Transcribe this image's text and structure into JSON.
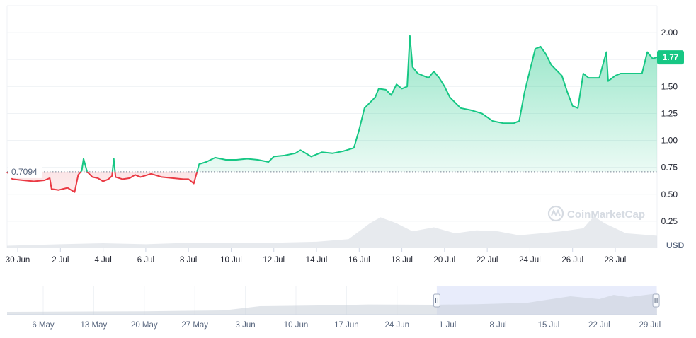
{
  "chart_data": {
    "type": "area",
    "watermark": "CoinMarketCap",
    "unit_label": "USD",
    "current_price_label": "1.77",
    "reference_label": "0.7094",
    "reference_value": 0.7094,
    "colors": {
      "up": "#16c784",
      "down": "#ea3943",
      "volume": "#dfe3e8",
      "navigator_selection": "#e8ecfb",
      "grid": "#eff2f5"
    },
    "ylim": [
      0,
      2.25
    ],
    "y_ticks": [
      {
        "value": 0.25,
        "label": "0.25"
      },
      {
        "value": 0.5,
        "label": "0.50"
      },
      {
        "value": 0.75,
        "label": "0.75"
      },
      {
        "value": 1.0,
        "label": "1.00"
      },
      {
        "value": 1.25,
        "label": "1.25"
      },
      {
        "value": 1.5,
        "label": "1.50"
      },
      {
        "value": 1.75,
        "label": "1.75"
      },
      {
        "value": 2.0,
        "label": "2.00"
      }
    ],
    "x_domain": [
      "2024-06-29T12:00",
      "2024-07-29T23:00"
    ],
    "x_ticks": [
      {
        "value": "2024-06-30",
        "label": "30 Jun"
      },
      {
        "value": "2024-07-02",
        "label": "2 Jul"
      },
      {
        "value": "2024-07-04",
        "label": "4 Jul"
      },
      {
        "value": "2024-07-06",
        "label": "6 Jul"
      },
      {
        "value": "2024-07-08",
        "label": "8 Jul"
      },
      {
        "value": "2024-07-10",
        "label": "10 Jul"
      },
      {
        "value": "2024-07-12",
        "label": "12 Jul"
      },
      {
        "value": "2024-07-14",
        "label": "14 Jul"
      },
      {
        "value": "2024-07-16",
        "label": "16 Jul"
      },
      {
        "value": "2024-07-18",
        "label": "18 Jul"
      },
      {
        "value": "2024-07-20",
        "label": "20 Jul"
      },
      {
        "value": "2024-07-22",
        "label": "22 Jul"
      },
      {
        "value": "2024-07-24",
        "label": "24 Jul"
      },
      {
        "value": "2024-07-26",
        "label": "26 Jul"
      },
      {
        "value": "2024-07-28",
        "label": "28 Jul"
      }
    ],
    "series": [
      {
        "values": [
          [
            "2024-06-29T12:00",
            0.71
          ],
          [
            "2024-06-29T18:00",
            0.64
          ],
          [
            "2024-06-30T06:00",
            0.63
          ],
          [
            "2024-06-30T18:00",
            0.62
          ],
          [
            "2024-07-01T06:00",
            0.63
          ],
          [
            "2024-07-01T12:00",
            0.65
          ],
          [
            "2024-07-01T14:00",
            0.55
          ],
          [
            "2024-07-01T22:00",
            0.54
          ],
          [
            "2024-07-02T08:00",
            0.56
          ],
          [
            "2024-07-02T16:00",
            0.52
          ],
          [
            "2024-07-02T20:00",
            0.68
          ],
          [
            "2024-07-03T00:00",
            0.72
          ],
          [
            "2024-07-03T02:00",
            0.83
          ],
          [
            "2024-07-03T06:00",
            0.71
          ],
          [
            "2024-07-03T12:00",
            0.66
          ],
          [
            "2024-07-03T18:00",
            0.65
          ],
          [
            "2024-07-04T00:00",
            0.62
          ],
          [
            "2024-07-04T06:00",
            0.64
          ],
          [
            "2024-07-04T10:00",
            0.67
          ],
          [
            "2024-07-04T12:00",
            0.83
          ],
          [
            "2024-07-04T14:00",
            0.66
          ],
          [
            "2024-07-04T22:00",
            0.64
          ],
          [
            "2024-07-05T06:00",
            0.65
          ],
          [
            "2024-07-05T12:00",
            0.68
          ],
          [
            "2024-07-05T18:00",
            0.66
          ],
          [
            "2024-07-06T06:00",
            0.69
          ],
          [
            "2024-07-06T18:00",
            0.66
          ],
          [
            "2024-07-07T06:00",
            0.65
          ],
          [
            "2024-07-07T18:00",
            0.64
          ],
          [
            "2024-07-08T00:00",
            0.64
          ],
          [
            "2024-07-08T06:00",
            0.6
          ],
          [
            "2024-07-08T12:00",
            0.78
          ],
          [
            "2024-07-08T20:00",
            0.8
          ],
          [
            "2024-07-09T06:00",
            0.84
          ],
          [
            "2024-07-09T18:00",
            0.82
          ],
          [
            "2024-07-10T06:00",
            0.82
          ],
          [
            "2024-07-10T18:00",
            0.83
          ],
          [
            "2024-07-11T06:00",
            0.82
          ],
          [
            "2024-07-11T18:00",
            0.8
          ],
          [
            "2024-07-12T00:00",
            0.85
          ],
          [
            "2024-07-12T12:00",
            0.86
          ],
          [
            "2024-07-13T00:00",
            0.88
          ],
          [
            "2024-07-13T06:00",
            0.91
          ],
          [
            "2024-07-13T18:00",
            0.85
          ],
          [
            "2024-07-14T06:00",
            0.89
          ],
          [
            "2024-07-14T18:00",
            0.88
          ],
          [
            "2024-07-15T06:00",
            0.9
          ],
          [
            "2024-07-15T18:00",
            0.93
          ],
          [
            "2024-07-16T00:00",
            1.1
          ],
          [
            "2024-07-16T06:00",
            1.3
          ],
          [
            "2024-07-16T12:00",
            1.35
          ],
          [
            "2024-07-16T18:00",
            1.4
          ],
          [
            "2024-07-16T22:00",
            1.48
          ],
          [
            "2024-07-17T06:00",
            1.47
          ],
          [
            "2024-07-17T12:00",
            1.42
          ],
          [
            "2024-07-17T18:00",
            1.52
          ],
          [
            "2024-07-18T00:00",
            1.48
          ],
          [
            "2024-07-18T06:00",
            1.5
          ],
          [
            "2024-07-18T09:00",
            1.97
          ],
          [
            "2024-07-18T12:00",
            1.68
          ],
          [
            "2024-07-18T18:00",
            1.62
          ],
          [
            "2024-07-19T00:00",
            1.6
          ],
          [
            "2024-07-19T06:00",
            1.58
          ],
          [
            "2024-07-19T12:00",
            1.64
          ],
          [
            "2024-07-19T18:00",
            1.58
          ],
          [
            "2024-07-20T00:00",
            1.5
          ],
          [
            "2024-07-20T06:00",
            1.4
          ],
          [
            "2024-07-20T18:00",
            1.3
          ],
          [
            "2024-07-21T06:00",
            1.28
          ],
          [
            "2024-07-21T18:00",
            1.25
          ],
          [
            "2024-07-22T06:00",
            1.18
          ],
          [
            "2024-07-22T18:00",
            1.16
          ],
          [
            "2024-07-23T06:00",
            1.16
          ],
          [
            "2024-07-23T12:00",
            1.18
          ],
          [
            "2024-07-23T18:00",
            1.45
          ],
          [
            "2024-07-24T00:00",
            1.65
          ],
          [
            "2024-07-24T06:00",
            1.85
          ],
          [
            "2024-07-24T12:00",
            1.87
          ],
          [
            "2024-07-24T18:00",
            1.8
          ],
          [
            "2024-07-25T00:00",
            1.7
          ],
          [
            "2024-07-25T06:00",
            1.65
          ],
          [
            "2024-07-25T12:00",
            1.6
          ],
          [
            "2024-07-25T18:00",
            1.45
          ],
          [
            "2024-07-26T00:00",
            1.32
          ],
          [
            "2024-07-26T06:00",
            1.3
          ],
          [
            "2024-07-26T12:00",
            1.62
          ],
          [
            "2024-07-26T18:00",
            1.58
          ],
          [
            "2024-07-27T06:00",
            1.58
          ],
          [
            "2024-07-27T14:00",
            1.82
          ],
          [
            "2024-07-27T16:00",
            1.55
          ],
          [
            "2024-07-28T00:00",
            1.6
          ],
          [
            "2024-07-28T06:00",
            1.62
          ],
          [
            "2024-07-28T18:00",
            1.62
          ],
          [
            "2024-07-29T06:00",
            1.62
          ],
          [
            "2024-07-29T12:00",
            1.82
          ],
          [
            "2024-07-29T18:00",
            1.76
          ],
          [
            "2024-07-29T23:00",
            1.77
          ]
        ]
      }
    ],
    "volume": {
      "values": [
        [
          "2024-06-29T12:00",
          0.5
        ],
        [
          "2024-07-02T00:00",
          0.8
        ],
        [
          "2024-07-04T00:00",
          1.0
        ],
        [
          "2024-07-06T00:00",
          0.8
        ],
        [
          "2024-07-08T00:00",
          1.1
        ],
        [
          "2024-07-10T00:00",
          1.0
        ],
        [
          "2024-07-12T00:00",
          1.1
        ],
        [
          "2024-07-14T00:00",
          1.3
        ],
        [
          "2024-07-15T12:00",
          1.8
        ],
        [
          "2024-07-16T12:00",
          5.0
        ],
        [
          "2024-07-17T00:00",
          6.2
        ],
        [
          "2024-07-17T18:00",
          5.0
        ],
        [
          "2024-07-18T12:00",
          3.4
        ],
        [
          "2024-07-19T12:00",
          4.2
        ],
        [
          "2024-07-20T12:00",
          3.0
        ],
        [
          "2024-07-21T12:00",
          3.6
        ],
        [
          "2024-07-22T12:00",
          3.4
        ],
        [
          "2024-07-23T12:00",
          2.6
        ],
        [
          "2024-07-24T12:00",
          3.0
        ],
        [
          "2024-07-25T12:00",
          3.4
        ],
        [
          "2024-07-26T12:00",
          4.0
        ],
        [
          "2024-07-27T00:00",
          6.4
        ],
        [
          "2024-07-27T12:00",
          5.0
        ],
        [
          "2024-07-28T12:00",
          3.0
        ],
        [
          "2024-07-29T23:00",
          2.5
        ]
      ]
    },
    "navigator": {
      "x_domain": [
        "2024-05-01",
        "2024-07-30"
      ],
      "selection": [
        "2024-06-29T12:00",
        "2024-07-29T23:00"
      ],
      "x_ticks": [
        {
          "value": "2024-05-06",
          "label": "6 May"
        },
        {
          "value": "2024-05-13",
          "label": "13 May"
        },
        {
          "value": "2024-05-20",
          "label": "20 May"
        },
        {
          "value": "2024-05-27",
          "label": "27 May"
        },
        {
          "value": "2024-06-03",
          "label": "3 Jun"
        },
        {
          "value": "2024-06-10",
          "label": "10 Jun"
        },
        {
          "value": "2024-06-17",
          "label": "17 Jun"
        },
        {
          "value": "2024-06-24",
          "label": "24 Jun"
        },
        {
          "value": "2024-07-01",
          "label": "1 Jul"
        },
        {
          "value": "2024-07-08",
          "label": "8 Jul"
        },
        {
          "value": "2024-07-15",
          "label": "15 Jul"
        },
        {
          "value": "2024-07-22",
          "label": "22 Jul"
        },
        {
          "value": "2024-07-29",
          "label": "29 Jul"
        }
      ],
      "values": [
        [
          "2024-05-01",
          0.1
        ],
        [
          "2024-05-20",
          0.12
        ],
        [
          "2024-05-31",
          0.15
        ],
        [
          "2024-06-05",
          0.3
        ],
        [
          "2024-06-15",
          0.33
        ],
        [
          "2024-06-20",
          0.36
        ],
        [
          "2024-06-29",
          0.35
        ],
        [
          "2024-07-05",
          0.37
        ],
        [
          "2024-07-12",
          0.42
        ],
        [
          "2024-07-18",
          0.65
        ],
        [
          "2024-07-22",
          0.55
        ],
        [
          "2024-07-24",
          0.7
        ],
        [
          "2024-07-26",
          0.62
        ],
        [
          "2024-07-30",
          0.75
        ]
      ]
    }
  }
}
